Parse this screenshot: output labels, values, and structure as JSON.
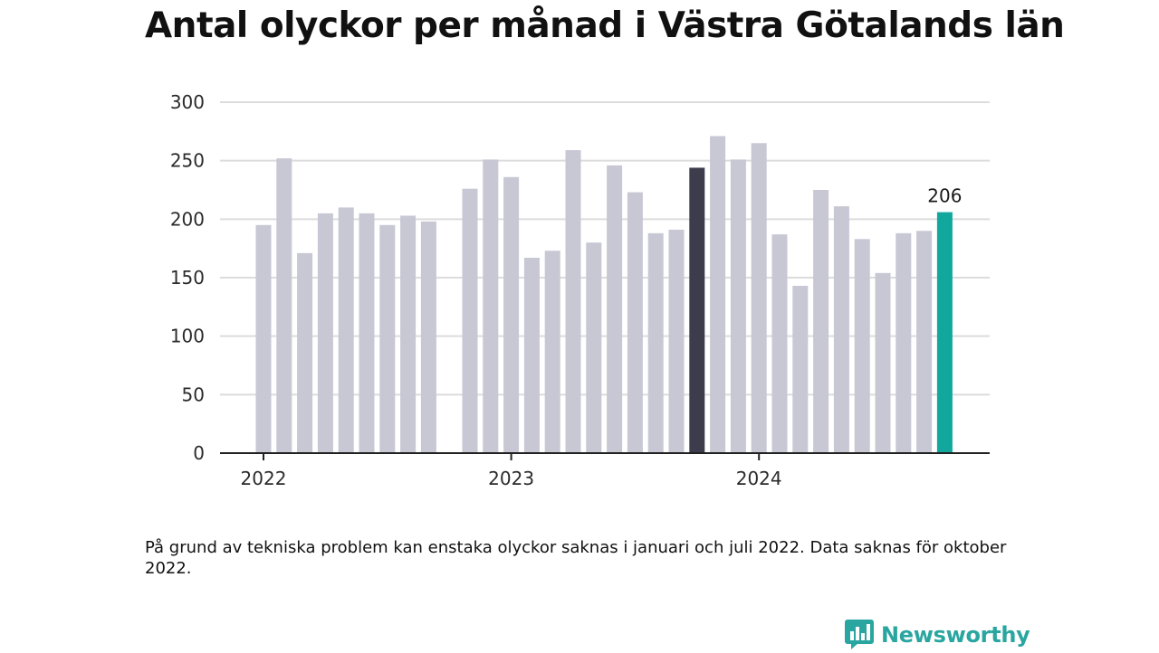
{
  "title": "Antal olyckor per månad i Västra Götalands län",
  "note": "På grund av tekniska problem kan enstaka olyckor saknas i januari och juli 2022. Data saknas för oktober 2022.",
  "brand": {
    "name": "Newsworthy",
    "icon": "newsworthy-logo-icon"
  },
  "colors": {
    "default_bar": "#c8c7d4",
    "highlight_bar": "#3d3c4c",
    "latest_bar": "#12a79d",
    "grid": "#dcdcdc",
    "axis": "#222222"
  },
  "chart_data": {
    "type": "bar",
    "title": "Antal olyckor per månad i Västra Götalands län",
    "xlabel": "",
    "ylabel": "",
    "ylim": [
      0,
      300
    ],
    "yticks": [
      "0",
      "50",
      "100",
      "150",
      "200",
      "250",
      "300"
    ],
    "year_labels": [
      {
        "label": "2022",
        "index": 0
      },
      {
        "label": "2023",
        "index": 12
      },
      {
        "label": "2024",
        "index": 24
      }
    ],
    "grid": true,
    "categories": [
      "2022-01",
      "2022-02",
      "2022-03",
      "2022-04",
      "2022-05",
      "2022-06",
      "2022-07",
      "2022-08",
      "2022-09",
      "2022-10",
      "2022-11",
      "2022-12",
      "2023-01",
      "2023-02",
      "2023-03",
      "2023-04",
      "2023-05",
      "2023-06",
      "2023-07",
      "2023-08",
      "2023-09",
      "2023-10",
      "2023-11",
      "2023-12",
      "2024-01",
      "2024-02",
      "2024-03",
      "2024-04",
      "2024-05",
      "2024-06",
      "2024-07",
      "2024-08",
      "2024-09",
      "2024-10"
    ],
    "values": [
      195,
      252,
      171,
      205,
      210,
      205,
      195,
      203,
      198,
      null,
      226,
      251,
      236,
      167,
      173,
      259,
      180,
      246,
      223,
      188,
      191,
      244,
      271,
      251,
      265,
      187,
      143,
      225,
      211,
      183,
      154,
      188,
      190,
      206
    ],
    "highlight_index": 21,
    "latest_index": 33,
    "data_labels": [
      {
        "index": 33,
        "text": "206"
      }
    ]
  }
}
